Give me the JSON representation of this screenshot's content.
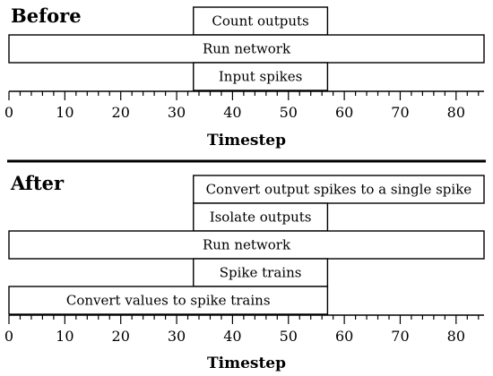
{
  "chart_data": [
    {
      "type": "gantt",
      "title": "Before",
      "xlabel": "Timestep",
      "xlim": [
        0,
        85
      ],
      "ticks": [
        0,
        10,
        20,
        30,
        40,
        50,
        60,
        70,
        80
      ],
      "bars": [
        {
          "label": "Count outputs",
          "start": 33,
          "end": 57
        },
        {
          "label": "Run network",
          "start": 0,
          "end": 85
        },
        {
          "label": "Input spikes",
          "start": 33,
          "end": 57
        }
      ]
    },
    {
      "type": "gantt",
      "title": "After",
      "xlabel": "Timestep",
      "xlim": [
        0,
        85
      ],
      "ticks": [
        0,
        10,
        20,
        30,
        40,
        50,
        60,
        70,
        80
      ],
      "bars": [
        {
          "label": "Convert output spikes to a single spike",
          "start": 33,
          "end": 85
        },
        {
          "label": "Isolate outputs",
          "start": 33,
          "end": 57
        },
        {
          "label": "Run network",
          "start": 0,
          "end": 85
        },
        {
          "label": "Spike trains",
          "start": 33,
          "end": 57
        },
        {
          "label": "Convert values to spike trains",
          "start": 0,
          "end": 57
        }
      ]
    }
  ]
}
